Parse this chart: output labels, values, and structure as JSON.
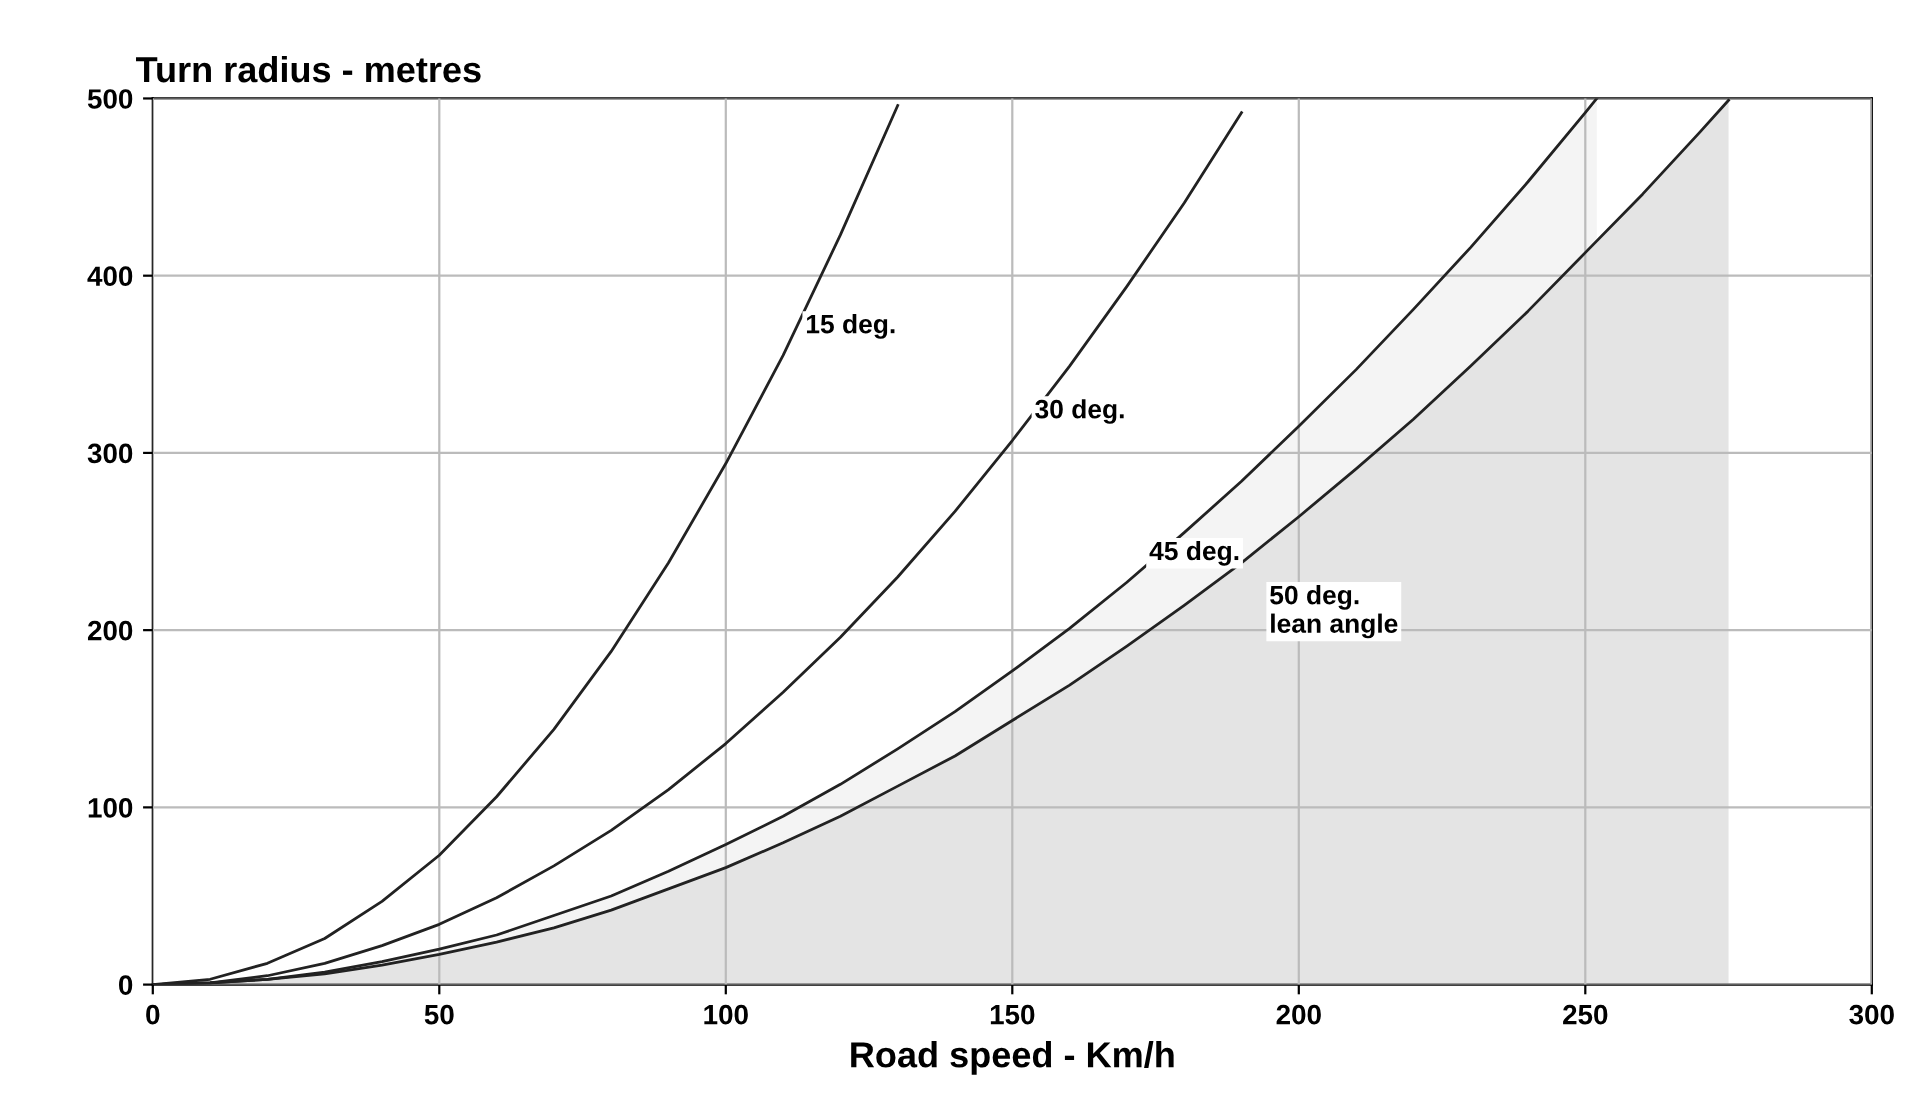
{
  "chart_data": {
    "type": "line",
    "ylabel": "Turn radius - metres",
    "xlabel": "Road speed - Km/h",
    "xlim": [
      0,
      300
    ],
    "ylim": [
      0,
      500
    ],
    "xticks": [
      0,
      50,
      100,
      150,
      200,
      250,
      300
    ],
    "yticks": [
      0,
      100,
      200,
      300,
      400,
      500
    ],
    "grid": true,
    "series": [
      {
        "type": "area",
        "color": "#f4f4f4",
        "x": [
          0,
          10,
          20,
          30,
          40,
          50,
          60,
          70,
          80,
          90,
          100,
          110,
          120,
          130,
          140,
          150,
          160,
          170,
          180,
          190,
          200,
          210,
          220,
          230,
          240,
          250,
          252
        ],
        "values": [
          0,
          1,
          3,
          7,
          13,
          20,
          28,
          39,
          50,
          64,
          79,
          95,
          113,
          133,
          154,
          177,
          201,
          227,
          255,
          284,
          315,
          347,
          381,
          416,
          453,
          492,
          500
        ]
      },
      {
        "type": "area",
        "color": "#e4e4e4",
        "x": [
          0,
          10,
          20,
          30,
          40,
          50,
          60,
          70,
          80,
          90,
          100,
          110,
          120,
          130,
          140,
          150,
          160,
          170,
          180,
          190,
          200,
          210,
          220,
          230,
          240,
          250,
          260,
          270,
          275
        ],
        "values": [
          0,
          1,
          3,
          6,
          11,
          17,
          24,
          32,
          42,
          54,
          66,
          80,
          95,
          112,
          129,
          149,
          169,
          191,
          214,
          238,
          264,
          291,
          319,
          349,
          380,
          413,
          446,
          481,
          499
        ]
      },
      {
        "color": "#222222",
        "x": [
          0,
          10,
          20,
          30,
          40,
          50,
          60,
          70,
          80,
          90,
          100,
          110,
          120,
          130
        ],
        "values": [
          0,
          3,
          12,
          26,
          47,
          73,
          106,
          144,
          188,
          238,
          294,
          355,
          423,
          496
        ]
      },
      {
        "color": "#222222",
        "x": [
          0,
          10,
          20,
          30,
          40,
          50,
          60,
          70,
          80,
          90,
          100,
          110,
          120,
          130,
          140,
          150,
          160,
          170,
          180,
          190
        ],
        "values": [
          0,
          1,
          5,
          12,
          22,
          34,
          49,
          67,
          87,
          110,
          136,
          165,
          196,
          230,
          267,
          307,
          349,
          394,
          441,
          492
        ]
      }
    ],
    "annotations": [
      {
        "text": "15 deg.",
        "x": 110,
        "y": 355
      },
      {
        "text": "30 deg.",
        "x": 150,
        "y": 307
      },
      {
        "text": "45 deg.",
        "x": 170,
        "y": 227
      },
      {
        "text": "50 deg.\nlean angle",
        "x": 190,
        "y": 238
      }
    ]
  }
}
